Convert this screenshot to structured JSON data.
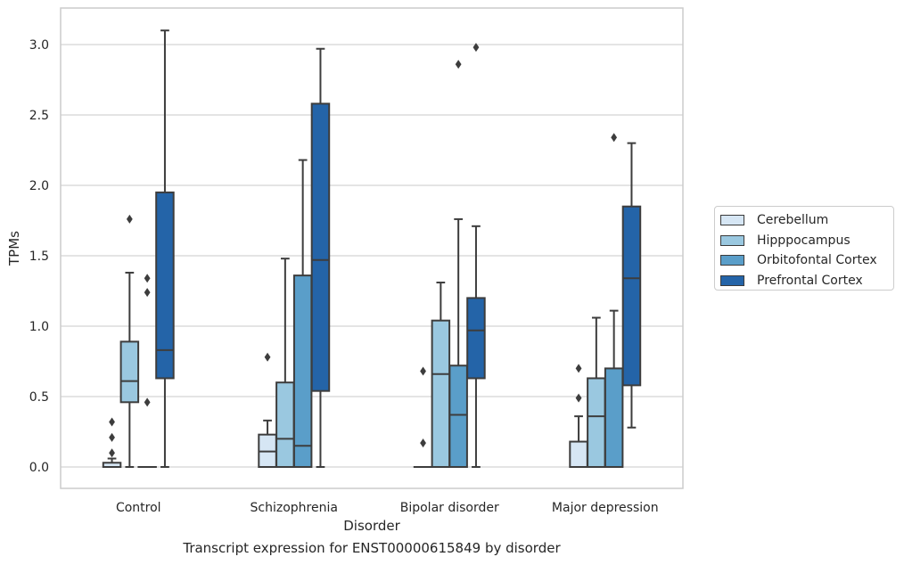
{
  "chart_data": {
    "type": "boxplot",
    "caption": "Transcript expression for ENST00000615849 by disorder",
    "xlabel": "Disorder",
    "ylabel": "TPMs",
    "ylim": [
      -0.15,
      3.25
    ],
    "yticks": [
      "0.0",
      "0.5",
      "1.0",
      "1.5",
      "2.0",
      "2.5",
      "3.0"
    ],
    "grid": "horizontal",
    "legend_position": "right",
    "categories": [
      "Control",
      "Schizophrenia",
      "Bipolar disorder",
      "Major depression"
    ],
    "series": [
      {
        "name": "Cerebellum",
        "color": "#d6e6f4",
        "boxes": [
          {
            "q1": 0.0,
            "median": 0.0,
            "q3": 0.03,
            "whisker_low": 0.0,
            "whisker_high": 0.06,
            "outliers": [
              0.1,
              0.21,
              0.32
            ]
          },
          {
            "q1": 0.0,
            "median": 0.11,
            "q3": 0.23,
            "whisker_low": 0.0,
            "whisker_high": 0.33,
            "outliers": [
              0.78
            ]
          },
          {
            "q1": 0.0,
            "median": 0.0,
            "q3": 0.0,
            "whisker_low": 0.0,
            "whisker_high": 0.0,
            "outliers": [
              0.17,
              0.68
            ]
          },
          {
            "q1": 0.0,
            "median": 0.0,
            "q3": 0.18,
            "whisker_low": 0.0,
            "whisker_high": 0.36,
            "outliers": [
              0.49,
              0.7
            ]
          }
        ]
      },
      {
        "name": "Hipppocampus",
        "color": "#9ac8e0",
        "boxes": [
          {
            "q1": 0.46,
            "median": 0.61,
            "q3": 0.89,
            "whisker_low": 0.0,
            "whisker_high": 1.38,
            "outliers": [
              1.76
            ]
          },
          {
            "q1": 0.0,
            "median": 0.2,
            "q3": 0.6,
            "whisker_low": 0.0,
            "whisker_high": 1.48,
            "outliers": []
          },
          {
            "q1": 0.0,
            "median": 0.66,
            "q3": 1.04,
            "whisker_low": 0.0,
            "whisker_high": 1.31,
            "outliers": []
          },
          {
            "q1": 0.0,
            "median": 0.36,
            "q3": 0.63,
            "whisker_low": 0.0,
            "whisker_high": 1.06,
            "outliers": []
          }
        ]
      },
      {
        "name": "Orbitofontal Cortex",
        "color": "#5a9ec9",
        "boxes": [
          {
            "q1": 0.0,
            "median": 0.0,
            "q3": 0.0,
            "whisker_low": 0.0,
            "whisker_high": 0.0,
            "outliers": [
              0.46,
              1.24,
              1.34
            ]
          },
          {
            "q1": 0.0,
            "median": 0.15,
            "q3": 1.36,
            "whisker_low": 0.0,
            "whisker_high": 2.18,
            "outliers": []
          },
          {
            "q1": 0.0,
            "median": 0.37,
            "q3": 0.72,
            "whisker_low": 0.0,
            "whisker_high": 1.76,
            "outliers": [
              2.86
            ]
          },
          {
            "q1": 0.0,
            "median": 0.0,
            "q3": 0.7,
            "whisker_low": 0.0,
            "whisker_high": 1.11,
            "outliers": [
              2.34
            ]
          }
        ]
      },
      {
        "name": "Prefrontal Cortex",
        "color": "#2464a8",
        "boxes": [
          {
            "q1": 0.63,
            "median": 0.83,
            "q3": 1.95,
            "whisker_low": 0.0,
            "whisker_high": 3.1,
            "outliers": []
          },
          {
            "q1": 0.54,
            "median": 1.47,
            "q3": 2.58,
            "whisker_low": 0.0,
            "whisker_high": 2.97,
            "outliers": []
          },
          {
            "q1": 0.63,
            "median": 0.97,
            "q3": 1.2,
            "whisker_low": 0.0,
            "whisker_high": 1.71,
            "outliers": [
              2.98
            ]
          },
          {
            "q1": 0.58,
            "median": 1.34,
            "q3": 1.85,
            "whisker_low": 0.28,
            "whisker_high": 2.3,
            "outliers": []
          }
        ]
      }
    ]
  }
}
